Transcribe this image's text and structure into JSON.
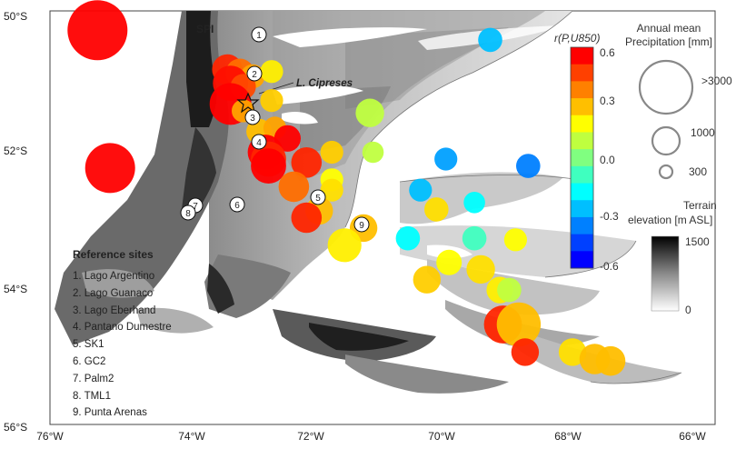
{
  "map": {
    "lon_ticks": [
      "76°W",
      "74°W",
      "72°W",
      "70°W",
      "68°W",
      "66°W"
    ],
    "lat_ticks": [
      "50°S",
      "52°S",
      "54°S",
      "56°S"
    ],
    "label_spi": "SPI",
    "label_cipreses": "L. Cipreses"
  },
  "reference_sites": {
    "title": "Reference sites",
    "items": [
      {
        "num": "1",
        "label": "1. Lago Argentino"
      },
      {
        "num": "2",
        "label": "2. Lago Guanaco"
      },
      {
        "num": "3",
        "label": "3. Lago Eberhand"
      },
      {
        "num": "4",
        "label": "4. Pantano Dumestre"
      },
      {
        "num": "5",
        "label": "5. SK1"
      },
      {
        "num": "6",
        "label": "6. GC2"
      },
      {
        "num": "7",
        "label": "7. Palm2"
      },
      {
        "num": "8",
        "label": "8. TML1"
      },
      {
        "num": "9",
        "label": "9. Punta Arenas"
      }
    ]
  },
  "colorbar": {
    "title": "r(P,U850)",
    "ticks": [
      "0.6",
      "0.3",
      "0.0",
      "-0.3",
      "-0.6"
    ],
    "colors": [
      "#ff0000",
      "#ff4000",
      "#ff8000",
      "#ffbf00",
      "#ffff00",
      "#bfff3f",
      "#80ff80",
      "#3fffbf",
      "#00ffff",
      "#00bfff",
      "#0080ff",
      "#0040ff",
      "#0000ff"
    ]
  },
  "precip_legend": {
    "title_line1": "Annual mean",
    "title_line2": "Precipitation [mm]",
    "values": [
      ">3000",
      "1000",
      "300"
    ]
  },
  "elev_legend": {
    "title_line1": "Terrain",
    "title_line2": "elevation [m ASL]",
    "max": "1500",
    "min": "0"
  },
  "stations": [
    {
      "lon": -75.25,
      "lat": -50.28,
      "r": 0.6,
      "precip": 3500
    },
    {
      "lon": -75.05,
      "lat": -52.28,
      "r": 0.6,
      "precip": 2200
    },
    {
      "lon": -69.05,
      "lat": -50.42,
      "r": -0.2,
      "precip": 300
    },
    {
      "lon": -73.2,
      "lat": -50.85,
      "r": 0.55,
      "precip": 600
    },
    {
      "lon": -73.0,
      "lat": -50.9,
      "r": 0.45,
      "precip": 500
    },
    {
      "lon": -72.8,
      "lat": -50.95,
      "r": 0.35,
      "precip": 300
    },
    {
      "lon": -72.5,
      "lat": -50.88,
      "r": 0.15,
      "precip": 250
    },
    {
      "lon": -73.15,
      "lat": -51.05,
      "r": 0.58,
      "precip": 900
    },
    {
      "lon": -72.95,
      "lat": -51.1,
      "r": 0.5,
      "precip": 350
    },
    {
      "lon": -73.15,
      "lat": -51.35,
      "r": 0.6,
      "precip": 1400
    },
    {
      "lon": -72.95,
      "lat": -51.45,
      "r": 0.35,
      "precip": 250
    },
    {
      "lon": -72.5,
      "lat": -51.3,
      "r": 0.25,
      "precip": 250
    },
    {
      "lon": -70.95,
      "lat": -51.48,
      "r": 0.05,
      "precip": 500
    },
    {
      "lon": -72.7,
      "lat": -51.75,
      "r": 0.3,
      "precip": 350
    },
    {
      "lon": -72.45,
      "lat": -51.7,
      "r": 0.35,
      "precip": 250
    },
    {
      "lon": -72.25,
      "lat": -51.85,
      "r": 0.6,
      "precip": 400
    },
    {
      "lon": -72.6,
      "lat": -52.05,
      "r": 0.62,
      "precip": 900
    },
    {
      "lon": -72.55,
      "lat": -52.15,
      "r": 0.55,
      "precip": 900
    },
    {
      "lon": -72.55,
      "lat": -52.25,
      "r": 0.6,
      "precip": 900
    },
    {
      "lon": -71.95,
      "lat": -52.2,
      "r": 0.55,
      "precip": 600
    },
    {
      "lon": -71.55,
      "lat": -52.05,
      "r": 0.25,
      "precip": 250
    },
    {
      "lon": -70.9,
      "lat": -52.05,
      "r": 0.05,
      "precip": 200
    },
    {
      "lon": -69.75,
      "lat": -52.15,
      "r": -0.25,
      "precip": 250
    },
    {
      "lon": -68.45,
      "lat": -52.25,
      "r": -0.3,
      "precip": 300
    },
    {
      "lon": -72.15,
      "lat": -52.55,
      "r": 0.45,
      "precip": 600
    },
    {
      "lon": -71.55,
      "lat": -52.45,
      "r": 0.1,
      "precip": 250
    },
    {
      "lon": -71.55,
      "lat": -52.6,
      "r": 0.2,
      "precip": 250
    },
    {
      "lon": -70.15,
      "lat": -52.6,
      "r": -0.2,
      "precip": 250
    },
    {
      "lon": -69.3,
      "lat": -52.78,
      "r": -0.1,
      "precip": 200
    },
    {
      "lon": -71.75,
      "lat": -52.9,
      "r": 0.3,
      "precip": 450
    },
    {
      "lon": -71.95,
      "lat": -53.0,
      "r": 0.55,
      "precip": 600
    },
    {
      "lon": -71.05,
      "lat": -53.15,
      "r": 0.3,
      "precip": 450
    },
    {
      "lon": -69.9,
      "lat": -52.88,
      "r": 0.2,
      "precip": 300
    },
    {
      "lon": -71.35,
      "lat": -53.4,
      "r": 0.15,
      "precip": 800
    },
    {
      "lon": -70.35,
      "lat": -53.3,
      "r": -0.1,
      "precip": 300
    },
    {
      "lon": -69.3,
      "lat": -53.3,
      "r": -0.05,
      "precip": 300
    },
    {
      "lon": -68.65,
      "lat": -53.32,
      "r": 0.1,
      "precip": 250
    },
    {
      "lon": -69.7,
      "lat": -53.65,
      "r": 0.1,
      "precip": 350
    },
    {
      "lon": -69.2,
      "lat": -53.75,
      "r": 0.2,
      "precip": 500
    },
    {
      "lon": -70.05,
      "lat": -53.9,
      "r": 0.25,
      "precip": 450
    },
    {
      "lon": -68.9,
      "lat": -54.05,
      "r": 0.15,
      "precip": 400
    },
    {
      "lon": -68.75,
      "lat": -54.05,
      "r": 0.05,
      "precip": 300
    },
    {
      "lon": -68.85,
      "lat": -54.55,
      "r": 0.55,
      "precip": 1100
    },
    {
      "lon": -68.6,
      "lat": -54.55,
      "r": 0.3,
      "precip": 1600
    },
    {
      "lon": -68.5,
      "lat": -54.95,
      "r": 0.55,
      "precip": 450
    },
    {
      "lon": -67.75,
      "lat": -54.95,
      "r": 0.2,
      "precip": 450
    },
    {
      "lon": -67.4,
      "lat": -55.05,
      "r": 0.3,
      "precip": 600
    },
    {
      "lon": -67.15,
      "lat": -55.08,
      "r": 0.3,
      "precip": 550
    }
  ]
}
